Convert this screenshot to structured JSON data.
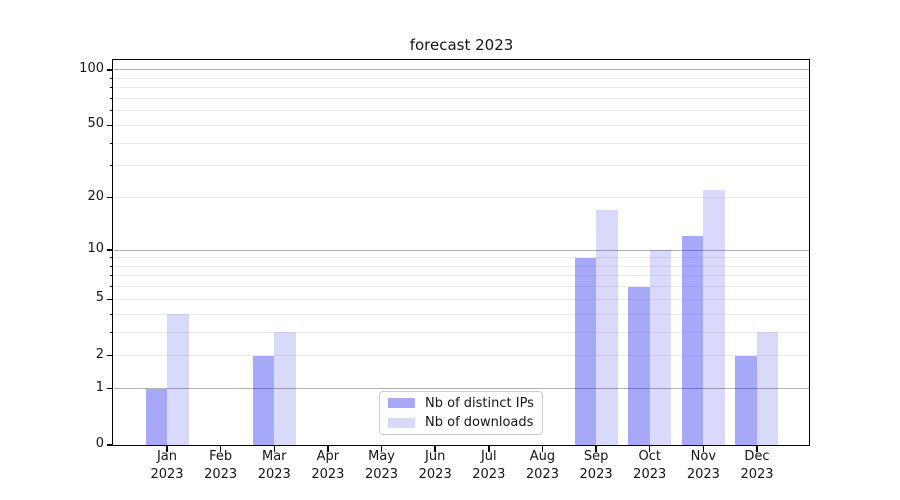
{
  "chart_data": {
    "type": "bar",
    "title": "forecast 2023",
    "categories": [
      "Jan 2023",
      "Feb 2023",
      "Mar 2023",
      "Apr 2023",
      "May 2023",
      "Jun 2023",
      "Jul 2023",
      "Aug 2023",
      "Sep 2023",
      "Oct 2023",
      "Nov 2023",
      "Dec 2023"
    ],
    "series": [
      {
        "name": "Nb of distinct IPs",
        "color": "#0000eb",
        "opacity": 0.34,
        "values": [
          1,
          0,
          2,
          0,
          0,
          0,
          0,
          0,
          9,
          6,
          12,
          2
        ]
      },
      {
        "name": "Nb of downloads",
        "color": "#0000eb",
        "opacity": 0.15,
        "values": [
          4,
          0,
          3,
          0,
          0,
          0,
          0,
          0,
          17,
          10,
          22,
          3
        ]
      }
    ],
    "xlabel": "",
    "ylabel": "",
    "yscale": "log1p",
    "ylim": [
      0,
      113
    ],
    "yticks": [
      0,
      1,
      2,
      5,
      10,
      20,
      50,
      100
    ],
    "minor_yticks": [
      3,
      4,
      6,
      7,
      8,
      9,
      30,
      40,
      60,
      70,
      80,
      90
    ],
    "major_gridlines": [
      1,
      10,
      100
    ],
    "minor_gridlines": [
      2,
      3,
      4,
      5,
      6,
      7,
      8,
      9,
      20,
      30,
      40,
      50,
      60,
      70,
      80,
      90
    ],
    "grid": "horizontal",
    "grid_major_color": "#b2b2b2",
    "grid_minor_color": "#ebebeb",
    "legend_position": "lower-center-inside"
  }
}
